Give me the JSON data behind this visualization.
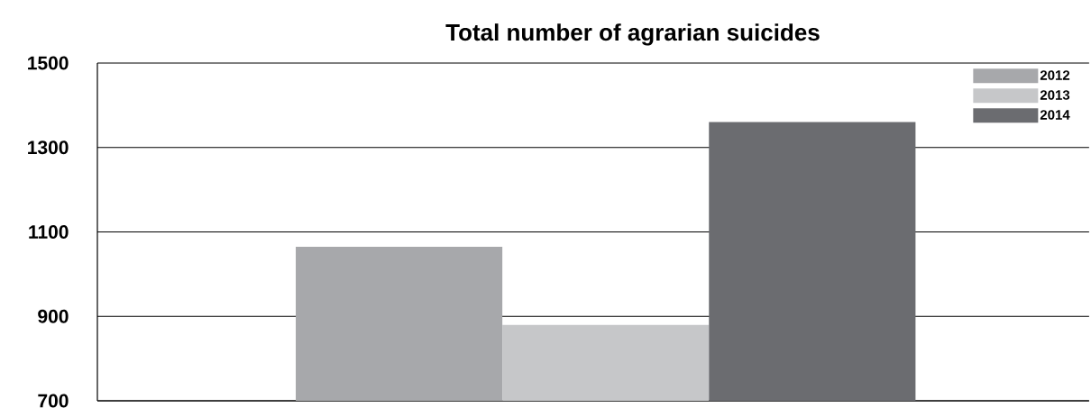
{
  "chart_data": {
    "type": "bar",
    "title": "Total number of agrarian suicides",
    "categories": [
      null
    ],
    "series": [
      {
        "name": "2012",
        "color": "#a7a8ab",
        "values": [
          1065
        ]
      },
      {
        "name": "2013",
        "color": "#c6c7c9",
        "values": [
          880
        ]
      },
      {
        "name": "2014",
        "color": "#6b6c70",
        "values": [
          1360
        ]
      }
    ],
    "ylim": [
      700,
      1500
    ],
    "yticks": [
      700,
      900,
      1100,
      1300,
      1500
    ],
    "grid": "y",
    "legend": "top right"
  }
}
